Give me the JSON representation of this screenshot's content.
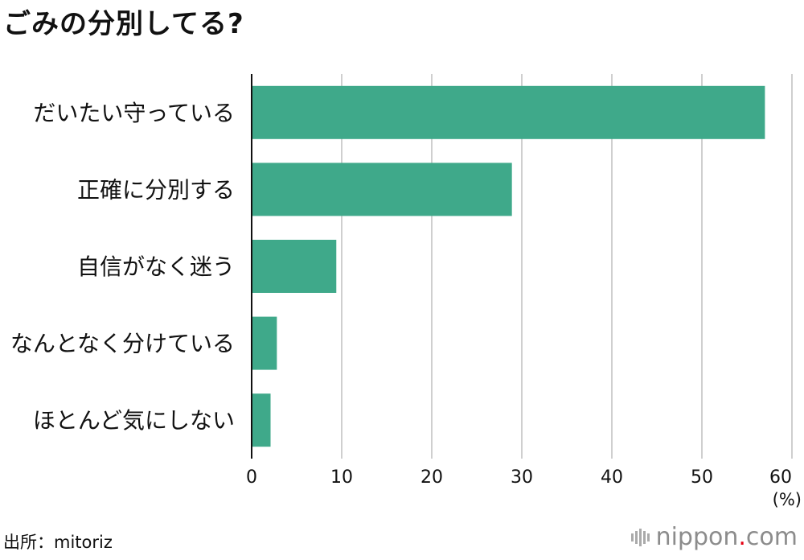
{
  "title": "ごみの分別してる?",
  "source": "出所：mitoriz",
  "logo": {
    "name": "nippon",
    "dot": ".",
    "suffix": "com"
  },
  "colors": {
    "bar": "#3fa98a",
    "grid": "#cfcfcf",
    "axis": "#111111"
  },
  "chart_data": {
    "type": "bar",
    "orientation": "horizontal",
    "categories": [
      "だいたい守っている",
      "正確に分別する",
      "自信がなく迷う",
      "なんとなく分けている",
      "ほとんど気にしない"
    ],
    "values": [
      57.0,
      28.9,
      9.4,
      2.8,
      2.1
    ],
    "xlim": [
      0,
      60
    ],
    "xticks": [
      0,
      10,
      20,
      30,
      40,
      50,
      60
    ],
    "xunit": "(%)",
    "grid": true
  }
}
